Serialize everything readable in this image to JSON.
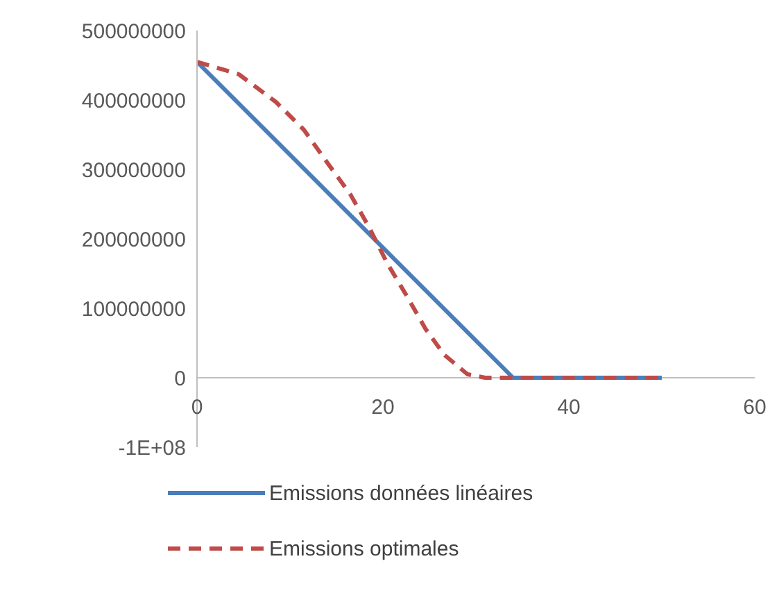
{
  "chart_data": {
    "type": "line",
    "xlim": [
      0,
      60
    ],
    "xticks": [
      0,
      20,
      40,
      60
    ],
    "ylim": [
      -100000000,
      500000000
    ],
    "yticks": [
      {
        "value": -100000000,
        "label": "-1E+08"
      },
      {
        "value": 0,
        "label": "0"
      },
      {
        "value": 100000000,
        "label": "100000000"
      },
      {
        "value": 200000000,
        "label": "200000000"
      },
      {
        "value": 300000000,
        "label": "300000000"
      },
      {
        "value": 400000000,
        "label": "400000000"
      },
      {
        "value": 500000000,
        "label": "500000000"
      }
    ],
    "grid": false,
    "legend": "bottom",
    "marker": "none",
    "series": [
      {
        "name": "Emissions données linéaires",
        "color": "#4a7ebb",
        "line_style": "solid",
        "x": [
          0,
          34,
          50
        ],
        "values": [
          455000000,
          0,
          0
        ]
      },
      {
        "name": "Emissions optimales",
        "color": "#be4b48",
        "line_style": "dashed",
        "x": [
          0,
          4.5,
          8.5,
          11.5,
          14,
          16.5,
          18.5,
          20.5,
          22.6,
          24.6,
          26.6,
          29.1,
          31,
          50
        ],
        "values": [
          455000000,
          437000000,
          397000000,
          357000000,
          310000000,
          264000000,
          217000000,
          164000000,
          117000000,
          70000000,
          33000000,
          5000000,
          0,
          0
        ]
      }
    ]
  }
}
